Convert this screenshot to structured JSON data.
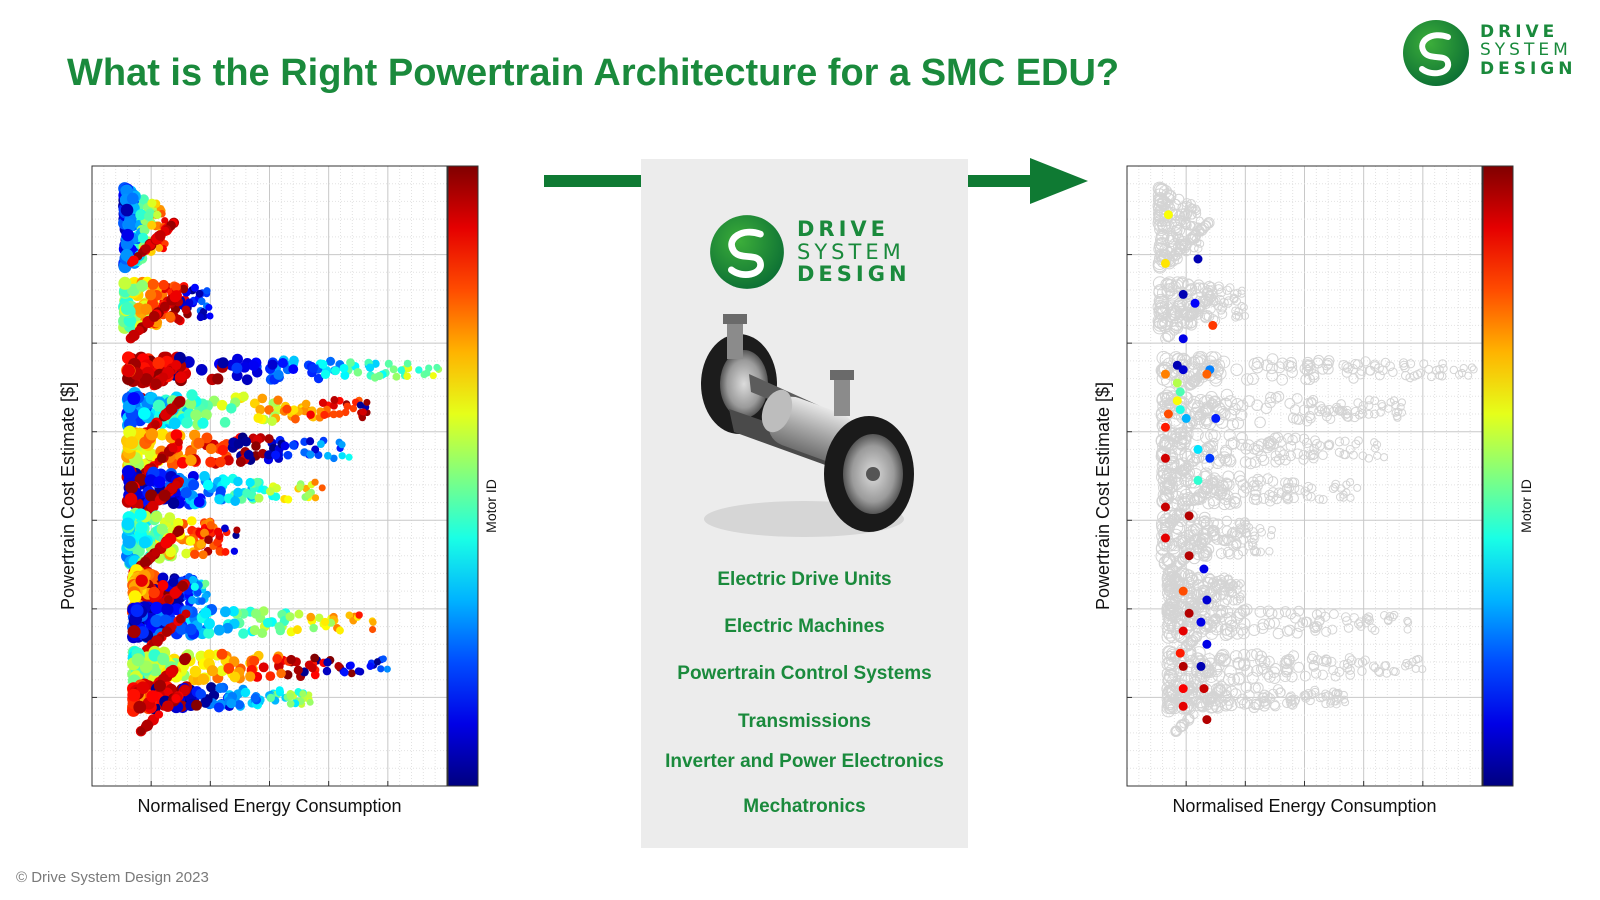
{
  "title": "What is the Right Powertrain Architecture for a SMC EDU?",
  "brand": {
    "line1": "DRIVE",
    "line2": "SYSTEM",
    "line3": "DESIGN",
    "color": "#1a8a3c",
    "icon": "dsd-swirl-logo-icon"
  },
  "arrow_color": "#0f7a33",
  "panel": {
    "image_icon": "electric-axle-icon",
    "capabilities": [
      "Electric Drive Units",
      "Electric Machines",
      "Powertrain Control Systems",
      "Transmissions",
      "Inverter and Power Electronics",
      "Mechatronics"
    ]
  },
  "copyright": "© Drive System Design 2023",
  "chart_data": [
    {
      "type": "scatter",
      "title": "",
      "xlabel": "Normalised Energy Consumption",
      "ylabel": "Powertrain Cost Estimate [$]",
      "colorbar_label": "Motor ID",
      "colormap": "jet",
      "xlim": [
        0,
        6
      ],
      "ylim": [
        0,
        7
      ],
      "grid": true,
      "tick_labels_shown": false,
      "highlight_mode": "all",
      "clusters": [
        {
          "y_center": 6.3,
          "x_start": 0.55,
          "x_end": 1.25,
          "spread": 0.45
        },
        {
          "y_center": 5.45,
          "x_start": 0.55,
          "x_end": 2.0,
          "spread": 0.3
        },
        {
          "y_center": 4.7,
          "x_start": 0.6,
          "x_end": 5.9,
          "spread": 0.15
        },
        {
          "y_center": 4.25,
          "x_start": 0.6,
          "x_end": 4.7,
          "spread": 0.2
        },
        {
          "y_center": 3.8,
          "x_start": 0.6,
          "x_end": 4.4,
          "spread": 0.2
        },
        {
          "y_center": 3.35,
          "x_start": 0.6,
          "x_end": 3.9,
          "spread": 0.2
        },
        {
          "y_center": 2.8,
          "x_start": 0.6,
          "x_end": 2.5,
          "spread": 0.3
        },
        {
          "y_center": 2.2,
          "x_start": 0.7,
          "x_end": 2.0,
          "spread": 0.25
        },
        {
          "y_center": 1.85,
          "x_start": 0.7,
          "x_end": 4.8,
          "spread": 0.17
        },
        {
          "y_center": 1.35,
          "x_start": 0.7,
          "x_end": 5.0,
          "spread": 0.17
        },
        {
          "y_center": 1.0,
          "x_start": 0.7,
          "x_end": 3.7,
          "spread": 0.15
        }
      ]
    },
    {
      "type": "scatter",
      "title": "",
      "xlabel": "Normalised Energy Consumption",
      "ylabel": "Powertrain Cost Estimate [$]",
      "colorbar_label": "Motor ID",
      "colormap": "jet",
      "xlim": [
        0,
        6
      ],
      "ylim": [
        0,
        7
      ],
      "grid": true,
      "tick_labels_shown": false,
      "highlight_mode": "pareto",
      "background_points_color": "#d4d4d4",
      "highlighted_points": [
        {
          "x": 0.7,
          "y": 6.45,
          "motor": 0.62
        },
        {
          "x": 0.65,
          "y": 5.9,
          "motor": 0.65
        },
        {
          "x": 1.2,
          "y": 5.95,
          "motor": 0.05
        },
        {
          "x": 0.95,
          "y": 5.55,
          "motor": 0.05
        },
        {
          "x": 1.15,
          "y": 5.45,
          "motor": 0.12
        },
        {
          "x": 0.95,
          "y": 5.05,
          "motor": 0.1
        },
        {
          "x": 1.45,
          "y": 5.2,
          "motor": 0.82
        },
        {
          "x": 0.85,
          "y": 4.75,
          "motor": 0.05
        },
        {
          "x": 0.95,
          "y": 4.7,
          "motor": 0.08
        },
        {
          "x": 0.65,
          "y": 4.65,
          "motor": 0.75
        },
        {
          "x": 0.85,
          "y": 4.55,
          "motor": 0.55
        },
        {
          "x": 0.9,
          "y": 4.45,
          "motor": 0.45
        },
        {
          "x": 0.85,
          "y": 4.35,
          "motor": 0.62
        },
        {
          "x": 1.4,
          "y": 4.7,
          "motor": 0.25
        },
        {
          "x": 1.35,
          "y": 4.65,
          "motor": 0.78
        },
        {
          "x": 0.9,
          "y": 4.25,
          "motor": 0.4
        },
        {
          "x": 0.7,
          "y": 4.2,
          "motor": 0.8
        },
        {
          "x": 1.0,
          "y": 4.15,
          "motor": 0.3
        },
        {
          "x": 1.5,
          "y": 4.15,
          "motor": 0.15
        },
        {
          "x": 0.65,
          "y": 4.05,
          "motor": 0.85
        },
        {
          "x": 1.2,
          "y": 3.8,
          "motor": 0.35
        },
        {
          "x": 1.4,
          "y": 3.7,
          "motor": 0.18
        },
        {
          "x": 0.65,
          "y": 3.7,
          "motor": 0.92
        },
        {
          "x": 1.2,
          "y": 3.45,
          "motor": 0.42
        },
        {
          "x": 0.65,
          "y": 3.15,
          "motor": 0.93
        },
        {
          "x": 1.05,
          "y": 3.05,
          "motor": 0.95
        },
        {
          "x": 0.65,
          "y": 2.8,
          "motor": 0.9
        },
        {
          "x": 1.05,
          "y": 2.6,
          "motor": 0.95
        },
        {
          "x": 1.3,
          "y": 2.45,
          "motor": 0.1
        },
        {
          "x": 0.95,
          "y": 2.2,
          "motor": 0.8
        },
        {
          "x": 1.35,
          "y": 2.1,
          "motor": 0.08
        },
        {
          "x": 1.05,
          "y": 1.95,
          "motor": 0.95
        },
        {
          "x": 1.25,
          "y": 1.85,
          "motor": 0.1
        },
        {
          "x": 0.95,
          "y": 1.75,
          "motor": 0.9
        },
        {
          "x": 1.35,
          "y": 1.6,
          "motor": 0.1
        },
        {
          "x": 0.9,
          "y": 1.5,
          "motor": 0.85
        },
        {
          "x": 1.25,
          "y": 1.35,
          "motor": 0.05
        },
        {
          "x": 0.95,
          "y": 1.35,
          "motor": 0.95
        },
        {
          "x": 0.95,
          "y": 1.1,
          "motor": 0.88
        },
        {
          "x": 1.3,
          "y": 1.1,
          "motor": 0.93
        },
        {
          "x": 0.95,
          "y": 0.9,
          "motor": 0.9
        },
        {
          "x": 1.35,
          "y": 0.75,
          "motor": 0.95
        }
      ]
    }
  ]
}
